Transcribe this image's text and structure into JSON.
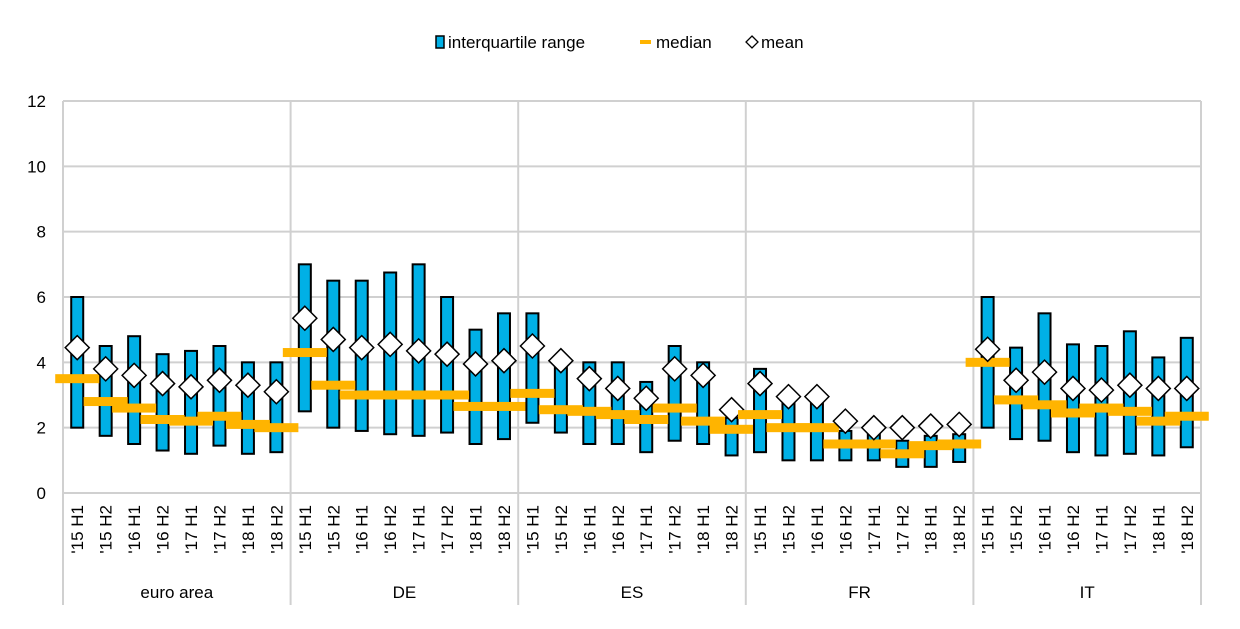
{
  "chart_data": {
    "type": "box-range",
    "title": "",
    "xlabel": "",
    "ylabel": "",
    "ylim": [
      0,
      12
    ],
    "yticks": [
      0,
      2,
      4,
      6,
      8,
      10,
      12
    ],
    "grid": true,
    "legend_placement": "top-center",
    "legend": [
      {
        "key": "iqr",
        "label": "interquartile range"
      },
      {
        "key": "median",
        "label": "median"
      },
      {
        "key": "mean",
        "label": "mean"
      }
    ],
    "colors": {
      "iqr": "#00b0e6",
      "median": "#ffb400",
      "mean": "#ffffff",
      "grid": "#d0d0d0"
    },
    "periods": [
      "'15 H1",
      "'15 H2",
      "'16 H1",
      "'16 H2",
      "'17 H1",
      "'17 H2",
      "'18 H1",
      "'18 H2"
    ],
    "groups": [
      {
        "name": "euro area",
        "q3": [
          6.0,
          4.5,
          4.8,
          4.25,
          4.35,
          4.5,
          4.0,
          4.0
        ],
        "q1": [
          2.0,
          1.75,
          1.5,
          1.3,
          1.2,
          1.45,
          1.2,
          1.25
        ],
        "median": [
          3.5,
          2.8,
          2.6,
          2.25,
          2.2,
          2.35,
          2.1,
          2.0
        ],
        "mean": [
          4.45,
          3.8,
          3.6,
          3.35,
          3.25,
          3.45,
          3.3,
          3.1
        ]
      },
      {
        "name": "DE",
        "q3": [
          7.0,
          6.5,
          6.5,
          6.75,
          7.0,
          6.0,
          5.0,
          5.5
        ],
        "q1": [
          2.5,
          2.0,
          1.9,
          1.8,
          1.75,
          1.85,
          1.5,
          1.65
        ],
        "median": [
          4.3,
          3.3,
          3.0,
          3.0,
          3.0,
          3.0,
          2.65,
          2.65
        ],
        "mean": [
          5.35,
          4.7,
          4.45,
          4.55,
          4.35,
          4.25,
          3.95,
          4.05
        ]
      },
      {
        "name": "ES",
        "q3": [
          5.5,
          4.0,
          4.0,
          4.0,
          3.4,
          4.5,
          4.0,
          2.3
        ],
        "q1": [
          2.15,
          1.85,
          1.5,
          1.5,
          1.25,
          1.6,
          1.5,
          1.15
        ],
        "median": [
          3.05,
          2.55,
          2.5,
          2.4,
          2.25,
          2.6,
          2.2,
          1.95
        ],
        "mean": [
          4.5,
          4.05,
          3.5,
          3.2,
          2.9,
          3.8,
          3.6,
          2.55
        ]
      },
      {
        "name": "FR",
        "q3": [
          3.8,
          2.9,
          2.9,
          1.9,
          1.8,
          1.6,
          1.75,
          1.8
        ],
        "q1": [
          1.25,
          1.0,
          1.0,
          1.0,
          1.0,
          0.8,
          0.8,
          0.95
        ],
        "median": [
          2.4,
          2.0,
          2.0,
          1.5,
          1.5,
          1.2,
          1.45,
          1.5
        ],
        "mean": [
          3.35,
          2.95,
          2.95,
          2.2,
          2.0,
          2.0,
          2.05,
          2.1
        ]
      },
      {
        "name": "IT",
        "q3": [
          6.0,
          4.45,
          5.5,
          4.55,
          4.5,
          4.95,
          4.15,
          4.75
        ],
        "q1": [
          2.0,
          1.65,
          1.6,
          1.25,
          1.15,
          1.2,
          1.15,
          1.4
        ],
        "median": [
          4.0,
          2.85,
          2.7,
          2.45,
          2.6,
          2.5,
          2.2,
          2.35
        ],
        "mean": [
          4.4,
          3.45,
          3.7,
          3.2,
          3.15,
          3.3,
          3.2,
          3.2
        ]
      }
    ]
  }
}
